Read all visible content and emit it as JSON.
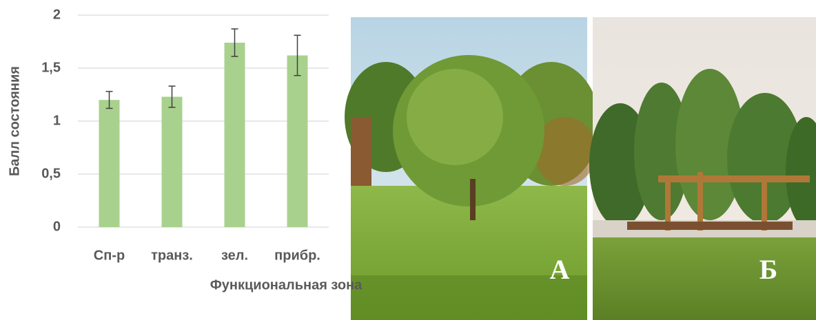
{
  "chart_data": {
    "type": "bar",
    "xlabel": "Функциональная зона",
    "ylabel": "Балл состояния",
    "categories": [
      "Сп-р",
      "транз.",
      "зел.",
      "прибр."
    ],
    "values": [
      1.2,
      1.23,
      1.74,
      1.62
    ],
    "errors": [
      0.08,
      0.1,
      0.13,
      0.19
    ],
    "color": "#a9d18e",
    "ylim": [
      0,
      2
    ],
    "yticks": [
      0,
      {
        "value": 0.5,
        "label": "0,5"
      },
      1,
      {
        "value": 1.5,
        "label": "1,5"
      },
      2
    ],
    "grid": true
  },
  "photos": [
    {
      "label": "А"
    },
    {
      "label": "Б"
    }
  ]
}
